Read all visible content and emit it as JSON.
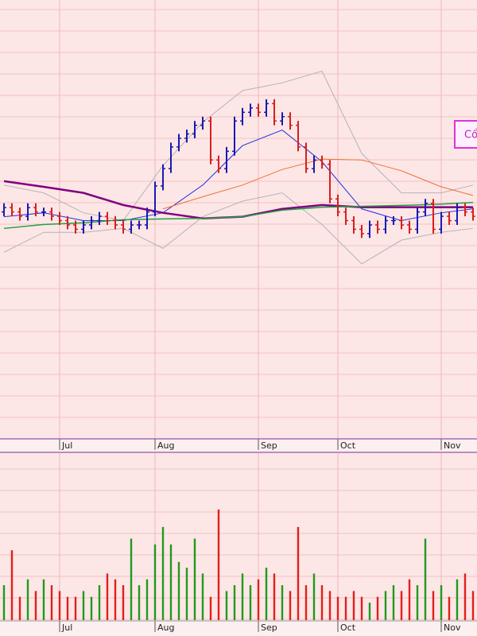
{
  "chart_data": [
    {
      "type": "ohlc",
      "open": [
        52,
        53,
        52,
        51,
        53,
        52,
        52,
        51,
        50,
        49,
        48,
        49,
        50,
        51,
        50,
        49,
        48,
        49,
        49,
        52,
        58,
        62,
        67,
        69,
        70,
        72,
        73,
        64,
        62,
        66,
        73,
        75,
        76,
        75,
        77,
        73,
        74,
        72,
        67,
        62,
        64,
        63,
        55,
        52,
        50,
        48,
        47,
        49,
        48,
        50,
        50,
        49,
        48,
        52,
        54,
        48,
        51,
        50,
        53,
        52
      ],
      "high": [
        54,
        54,
        53,
        54,
        54,
        53,
        53,
        52,
        51,
        50,
        50,
        51,
        52,
        52,
        51,
        50,
        50,
        50,
        53,
        59,
        63,
        68,
        70,
        71,
        73,
        74,
        74,
        65,
        67,
        74,
        76,
        77,
        77,
        78,
        78,
        75,
        75,
        73,
        68,
        65,
        65,
        64,
        56,
        53,
        51,
        49,
        50,
        50,
        51,
        51,
        51,
        50,
        53,
        55,
        55,
        52,
        52,
        54,
        54,
        53
      ],
      "low": [
        51,
        51,
        50,
        50,
        51,
        51,
        50,
        49,
        48,
        47,
        47,
        48,
        49,
        49,
        48,
        47,
        47,
        48,
        48,
        51,
        57,
        61,
        66,
        68,
        69,
        71,
        63,
        61,
        61,
        65,
        72,
        74,
        74,
        74,
        72,
        72,
        71,
        66,
        61,
        61,
        62,
        54,
        51,
        49,
        47,
        46,
        46,
        47,
        47,
        49,
        48,
        47,
        47,
        51,
        47,
        47,
        49,
        49,
        51,
        50
      ],
      "close": [
        53,
        52,
        51,
        53,
        52,
        52,
        51,
        50,
        49,
        48,
        49,
        50,
        51,
        50,
        49,
        48,
        49,
        49,
        52,
        58,
        62,
        67,
        69,
        70,
        72,
        73,
        64,
        62,
        66,
        73,
        75,
        76,
        75,
        77,
        73,
        74,
        72,
        67,
        62,
        64,
        63,
        55,
        52,
        50,
        48,
        47,
        49,
        48,
        50,
        50,
        49,
        48,
        52,
        54,
        48,
        51,
        50,
        53,
        52,
        51
      ],
      "up_color": "#1a1ab0",
      "down_color": "#d81e1e",
      "xlim": [
        -0.5,
        59.5
      ],
      "ylim": [
        0,
        100
      ],
      "xticks": [
        {
          "value": 7,
          "label": "Jul"
        },
        {
          "value": 19,
          "label": "Aug"
        },
        {
          "value": 32,
          "label": "Sep"
        },
        {
          "value": 42,
          "label": "Oct"
        },
        {
          "value": 55,
          "label": "Nov"
        }
      ],
      "lines": [
        {
          "color": "#b4b4b4",
          "width": 1,
          "x": [
            0,
            5,
            10,
            15,
            20,
            25,
            30,
            35,
            40,
            45,
            50,
            55,
            59
          ],
          "values": [
            58.2,
            56.4,
            51.8,
            50,
            62.7,
            72.7,
            80,
            81.8,
            84.5,
            65.5,
            56.4,
            56.4,
            58.2
          ]
        },
        {
          "color": "#b4b4b4",
          "width": 1,
          "x": [
            0,
            5,
            10,
            15,
            20,
            25,
            30,
            35,
            40,
            45,
            50,
            55,
            59
          ],
          "values": [
            42.7,
            47.3,
            47.3,
            48.2,
            43.6,
            50.9,
            54.5,
            56.4,
            49.1,
            40,
            45.5,
            47.3,
            48.2
          ]
        },
        {
          "color": "#2030e0",
          "width": 1,
          "x": [
            0,
            5,
            10,
            15,
            20,
            25,
            30,
            35,
            40,
            45,
            50,
            55,
            59
          ],
          "values": [
            50.9,
            51.8,
            50,
            50,
            51.8,
            58.2,
            67.3,
            70.9,
            63.6,
            52.7,
            50,
            51.8,
            52.7
          ]
        },
        {
          "color": "#f07030",
          "width": 1,
          "x": [
            0,
            5,
            10,
            15,
            20,
            25,
            30,
            35,
            40,
            45,
            50,
            55,
            59
          ],
          "values": [
            null,
            null,
            null,
            null,
            52.7,
            55.5,
            58.2,
            61.8,
            64.2,
            64,
            61.5,
            57.8,
            55.8
          ]
        },
        {
          "color": "#800080",
          "width": 2.5,
          "x": [
            0,
            5,
            10,
            15,
            20,
            25,
            30,
            35,
            40,
            45,
            50,
            55,
            59
          ],
          "values": [
            59.1,
            57.8,
            56.4,
            53.6,
            51.8,
            50.5,
            50.9,
            52.7,
            53.6,
            53.1,
            53.1,
            53.1,
            53.1
          ]
        },
        {
          "color": "#20a040",
          "width": 1.5,
          "x": [
            0,
            5,
            10,
            15,
            20,
            25,
            30,
            35,
            40,
            45,
            50,
            55,
            59
          ],
          "values": [
            48.2,
            49.1,
            49.5,
            50.2,
            50.4,
            50.5,
            50.9,
            52.4,
            53.1,
            53.3,
            53.5,
            53.8,
            54.2
          ]
        }
      ],
      "annotation": "Cổ"
    },
    {
      "type": "bar",
      "values": [
        30,
        60,
        20,
        35,
        25,
        35,
        30,
        25,
        20,
        20,
        25,
        20,
        30,
        40,
        35,
        30,
        70,
        30,
        35,
        65,
        80,
        65,
        50,
        45,
        70,
        40,
        20,
        95,
        25,
        30,
        40,
        30,
        35,
        45,
        40,
        30,
        25,
        80,
        30,
        40,
        30,
        25,
        20,
        20,
        25,
        20,
        15,
        20,
        25,
        30,
        25,
        35,
        30,
        70,
        25,
        30,
        20,
        35,
        40,
        25
      ],
      "up_color": "#1f9a1f",
      "down_color": "#e0201c",
      "ylim": [
        0,
        140
      ]
    }
  ]
}
